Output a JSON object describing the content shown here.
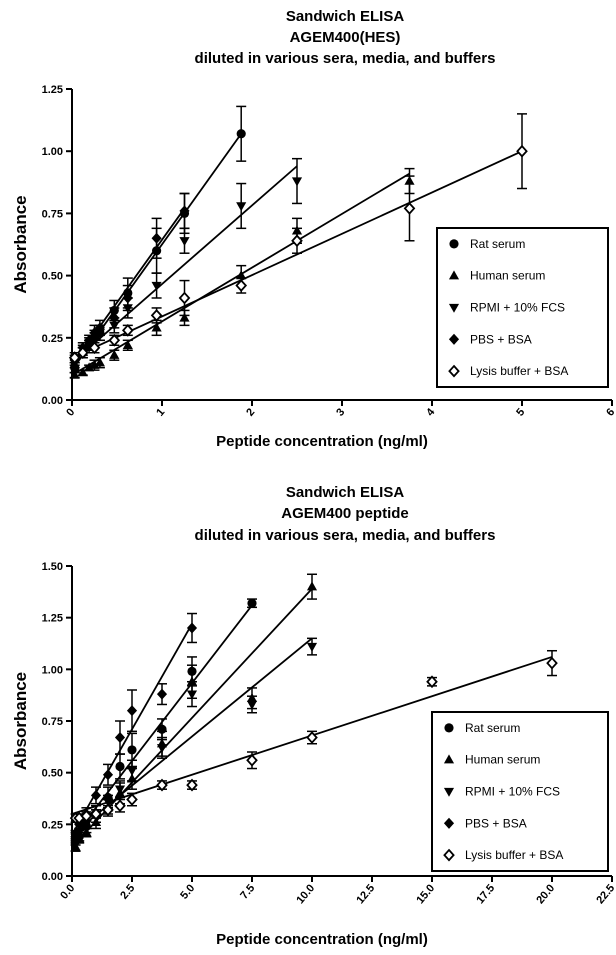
{
  "chart_data": [
    {
      "type": "scatter",
      "title_lines": [
        "Sandwich ELISA",
        "AGEM400(HES)",
        "diluted in various sera, media, and buffers"
      ],
      "xlabel": "Peptide concentration (ng/ml)",
      "ylabel": "Absorbance",
      "xlim": [
        0,
        6
      ],
      "ylim": [
        0,
        1.25
      ],
      "xticks": [
        "0",
        "1",
        "2",
        "3",
        "4",
        "5",
        "6"
      ],
      "xtick_values": [
        0,
        1,
        2,
        3,
        4,
        5,
        6
      ],
      "yticks": [
        "0.00",
        "0.25",
        "0.50",
        "0.75",
        "1.00",
        "1.25"
      ],
      "ytick_values": [
        0,
        0.25,
        0.5,
        0.75,
        1.0,
        1.25
      ],
      "legend_position": "right",
      "series": [
        {
          "name": "Rat serum",
          "marker": "circle",
          "points": [
            [
              0.03,
              0.13
            ],
            [
              0.12,
              0.19
            ],
            [
              0.19,
              0.22
            ],
            [
              0.25,
              0.25
            ],
            [
              0.31,
              0.27
            ],
            [
              0.47,
              0.36
            ],
            [
              0.62,
              0.43
            ],
            [
              0.94,
              0.6
            ],
            [
              1.25,
              0.75
            ],
            [
              1.88,
              1.07
            ]
          ],
          "errors": [
            0.02,
            0.02,
            0.03,
            0.03,
            0.03,
            0.04,
            0.06,
            0.09,
            0.08,
            0.11
          ],
          "fit": [
            [
              0.0,
              0.12
            ],
            [
              1.88,
              1.07
            ]
          ]
        },
        {
          "name": "Human serum",
          "marker": "triangle-up",
          "points": [
            [
              0.03,
              0.1
            ],
            [
              0.12,
              0.11
            ],
            [
              0.19,
              0.13
            ],
            [
              0.25,
              0.14
            ],
            [
              0.31,
              0.15
            ],
            [
              0.47,
              0.18
            ],
            [
              0.62,
              0.22
            ],
            [
              0.94,
              0.29
            ],
            [
              1.25,
              0.33
            ],
            [
              1.88,
              0.5
            ],
            [
              2.5,
              0.68
            ],
            [
              3.75,
              0.88
            ]
          ],
          "errors": [
            0.01,
            0.01,
            0.01,
            0.02,
            0.02,
            0.02,
            0.02,
            0.03,
            0.03,
            0.04,
            0.05,
            0.05
          ],
          "fit": [
            [
              0.0,
              0.1
            ],
            [
              3.75,
              0.91
            ]
          ]
        },
        {
          "name": "RPMI + 10% FCS",
          "marker": "triangle-down",
          "points": [
            [
              0.03,
              0.15
            ],
            [
              0.12,
              0.2
            ],
            [
              0.19,
              0.22
            ],
            [
              0.25,
              0.24
            ],
            [
              0.31,
              0.27
            ],
            [
              0.47,
              0.3
            ],
            [
              0.62,
              0.37
            ],
            [
              0.94,
              0.46
            ],
            [
              1.25,
              0.64
            ],
            [
              1.88,
              0.78
            ],
            [
              2.5,
              0.88
            ]
          ],
          "errors": [
            0.02,
            0.02,
            0.02,
            0.03,
            0.03,
            0.03,
            0.04,
            0.05,
            0.05,
            0.09,
            0.09
          ],
          "fit": [
            [
              0.0,
              0.15
            ],
            [
              2.5,
              0.94
            ]
          ]
        },
        {
          "name": "PBS + BSA",
          "marker": "diamond",
          "points": [
            [
              0.03,
              0.16
            ],
            [
              0.12,
              0.21
            ],
            [
              0.19,
              0.24
            ],
            [
              0.25,
              0.27
            ],
            [
              0.31,
              0.29
            ],
            [
              0.47,
              0.33
            ],
            [
              0.62,
              0.41
            ],
            [
              0.94,
              0.65
            ],
            [
              1.25,
              0.76
            ]
          ],
          "errors": [
            0.02,
            0.02,
            0.02,
            0.03,
            0.03,
            0.04,
            0.05,
            0.08,
            0.07
          ],
          "fit": [
            [
              0.0,
              0.14
            ],
            [
              1.25,
              0.77
            ]
          ]
        },
        {
          "name": "Lysis buffer + BSA",
          "marker": "diamond-open",
          "points": [
            [
              0.03,
              0.17
            ],
            [
              0.12,
              0.19
            ],
            [
              0.25,
              0.21
            ],
            [
              0.47,
              0.24
            ],
            [
              0.62,
              0.28
            ],
            [
              0.94,
              0.34
            ],
            [
              1.25,
              0.41
            ],
            [
              1.88,
              0.46
            ],
            [
              2.5,
              0.64
            ],
            [
              3.75,
              0.77
            ],
            [
              5.0,
              1.0
            ]
          ],
          "errors": [
            0.02,
            0.02,
            0.02,
            0.02,
            0.02,
            0.03,
            0.07,
            0.03,
            0.05,
            0.13,
            0.15
          ],
          "fit": [
            [
              0.0,
              0.17
            ],
            [
              5.0,
              1.0
            ]
          ]
        }
      ]
    },
    {
      "type": "scatter",
      "title_lines": [
        "Sandwich ELISA",
        "AGEM400 peptide",
        "diluted in various sera, media, and buffers"
      ],
      "xlabel": "Peptide concentration (ng/ml)",
      "ylabel": "Absorbance",
      "xlim": [
        0,
        22.5
      ],
      "ylim": [
        0,
        1.5
      ],
      "xticks": [
        "0.0",
        "2.5",
        "5.0",
        "7.5",
        "10.0",
        "12.5",
        "15.0",
        "17.5",
        "20.0",
        "22.5"
      ],
      "xtick_values": [
        0,
        2.5,
        5,
        7.5,
        10,
        12.5,
        15,
        17.5,
        20,
        22.5
      ],
      "yticks": [
        "0.00",
        "0.25",
        "0.50",
        "0.75",
        "1.00",
        "1.25",
        "1.50"
      ],
      "ytick_values": [
        0,
        0.25,
        0.5,
        0.75,
        1.0,
        1.25,
        1.5
      ],
      "legend_position": "bottom-right",
      "series": [
        {
          "name": "Rat serum",
          "marker": "circle",
          "points": [
            [
              0.15,
              0.17
            ],
            [
              0.3,
              0.19
            ],
            [
              0.6,
              0.24
            ],
            [
              1.0,
              0.3
            ],
            [
              1.5,
              0.38
            ],
            [
              2.0,
              0.53
            ],
            [
              2.5,
              0.61
            ],
            [
              3.75,
              0.71
            ],
            [
              5.0,
              0.99
            ],
            [
              7.5,
              1.32
            ]
          ],
          "errors": [
            0.02,
            0.02,
            0.03,
            0.04,
            0.05,
            0.06,
            0.08,
            0.05,
            0.07,
            0.02
          ],
          "fit": [
            [
              0.0,
              0.18
            ],
            [
              7.5,
              1.31
            ]
          ]
        },
        {
          "name": "Human serum",
          "marker": "triangle-up",
          "points": [
            [
              0.15,
              0.14
            ],
            [
              0.3,
              0.18
            ],
            [
              0.6,
              0.21
            ],
            [
              1.0,
              0.26
            ],
            [
              1.5,
              0.33
            ],
            [
              2.0,
              0.4
            ],
            [
              2.5,
              0.47
            ],
            [
              3.75,
              0.64
            ],
            [
              5.0,
              0.94
            ],
            [
              7.5,
              0.86
            ],
            [
              10.0,
              1.4
            ]
          ],
          "errors": [
            0.02,
            0.02,
            0.02,
            0.03,
            0.04,
            0.05,
            0.05,
            0.06,
            0.08,
            0.05,
            0.06
          ],
          "fit": [
            [
              0.0,
              0.14
            ],
            [
              10.0,
              1.39
            ]
          ]
        },
        {
          "name": "RPMI + 10% FCS",
          "marker": "triangle-down",
          "points": [
            [
              0.15,
              0.19
            ],
            [
              0.3,
              0.21
            ],
            [
              0.6,
              0.25
            ],
            [
              1.0,
              0.29
            ],
            [
              1.5,
              0.36
            ],
            [
              2.0,
              0.42
            ],
            [
              2.5,
              0.51
            ],
            [
              3.75,
              0.62
            ],
            [
              5.0,
              0.88
            ],
            [
              7.5,
              0.83
            ],
            [
              10.0,
              1.11
            ]
          ],
          "errors": [
            0.02,
            0.02,
            0.02,
            0.03,
            0.03,
            0.04,
            0.05,
            0.05,
            0.06,
            0.04,
            0.04
          ],
          "fit": [
            [
              0.0,
              0.2
            ],
            [
              10.0,
              1.15
            ]
          ]
        },
        {
          "name": "PBS + BSA",
          "marker": "diamond",
          "points": [
            [
              0.15,
              0.2
            ],
            [
              0.3,
              0.25
            ],
            [
              0.6,
              0.3
            ],
            [
              1.0,
              0.39
            ],
            [
              1.5,
              0.49
            ],
            [
              2.0,
              0.67
            ],
            [
              2.5,
              0.8
            ],
            [
              3.75,
              0.88
            ],
            [
              5.0,
              1.2
            ]
          ],
          "errors": [
            0.02,
            0.03,
            0.03,
            0.04,
            0.05,
            0.08,
            0.1,
            0.05,
            0.07
          ],
          "fit": [
            [
              0.0,
              0.2
            ],
            [
              5.0,
              1.22
            ]
          ]
        },
        {
          "name": "Lysis buffer + BSA",
          "marker": "diamond-open",
          "points": [
            [
              0.15,
              0.28
            ],
            [
              0.3,
              0.28
            ],
            [
              0.6,
              0.29
            ],
            [
              1.0,
              0.3
            ],
            [
              1.5,
              0.32
            ],
            [
              2.0,
              0.34
            ],
            [
              2.5,
              0.37
            ],
            [
              3.75,
              0.44
            ],
            [
              5.0,
              0.44
            ],
            [
              7.5,
              0.56
            ],
            [
              10.0,
              0.67
            ],
            [
              15.0,
              0.94
            ],
            [
              20.0,
              1.03
            ]
          ],
          "errors": [
            0.02,
            0.02,
            0.02,
            0.02,
            0.02,
            0.03,
            0.03,
            0.02,
            0.02,
            0.04,
            0.03,
            0.02,
            0.06
          ],
          "fit": [
            [
              0.0,
              0.3
            ],
            [
              20.0,
              1.06
            ]
          ]
        }
      ]
    }
  ]
}
